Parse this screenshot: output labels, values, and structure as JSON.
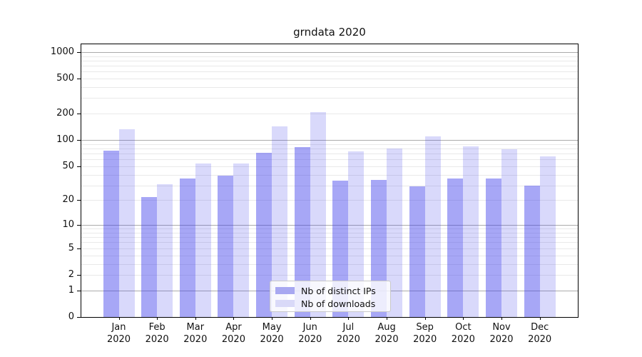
{
  "chart_data": {
    "type": "bar",
    "title": "grndata 2020",
    "months": [
      "Jan",
      "Feb",
      "Mar",
      "Apr",
      "May",
      "Jun",
      "Jul",
      "Aug",
      "Sep",
      "Oct",
      "Nov",
      "Dec"
    ],
    "year_label": "2020",
    "series": [
      {
        "name": "Nb of distinct IPs",
        "values": [
          76,
          22,
          36,
          39,
          72,
          83,
          34,
          35,
          29,
          36,
          36,
          30
        ]
      },
      {
        "name": "Nb of downloads",
        "values": [
          133,
          31,
          54,
          54,
          143,
          210,
          74,
          80,
          110,
          85,
          79,
          65
        ]
      }
    ],
    "y_ticks": [
      0,
      1,
      2,
      5,
      10,
      20,
      50,
      100,
      200,
      500,
      1000
    ],
    "yscale": "symlog",
    "ylim": [
      0,
      1250
    ],
    "grid": true,
    "legend_position": "lower center"
  },
  "colors": {
    "bar_ips": "rgba(64,64,236,0.46)",
    "bar_downloads": "rgba(64,64,236,0.20)",
    "legend_swatch_ips": "#a8a8f1",
    "legend_swatch_downloads": "#d9d9f8",
    "grid_major": "#ababab",
    "grid_minor": "#e9e9e9",
    "axis": "#000000",
    "text": "#111111"
  }
}
